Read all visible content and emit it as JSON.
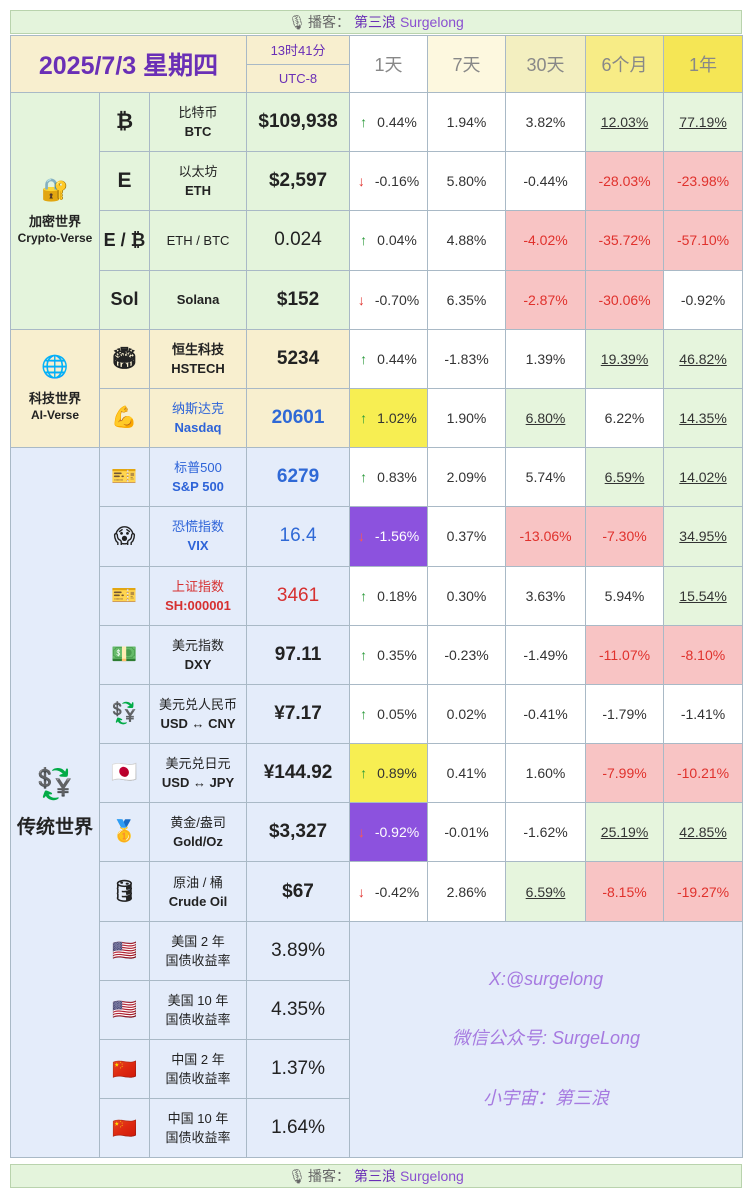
{
  "banner": {
    "label": "播客：",
    "name_cn": "第三浪",
    "name_en": "Surgelong",
    "icon": "microphone-icon"
  },
  "header": {
    "date": "2025/7/3 星期四",
    "time": "13时41分",
    "tz": "UTC-8",
    "periods": [
      "1天",
      "7天",
      "30天",
      "6个月",
      "1年"
    ]
  },
  "groups": {
    "crypto": {
      "icon": "🔐",
      "name_cn": "加密世界",
      "name_en": "Crypto-Verse"
    },
    "tech": {
      "icon": "🌐",
      "name_cn": "科技世界",
      "name_en": "AI-Verse"
    },
    "trad": {
      "icon": "💱",
      "name_cn": "传统世界"
    }
  },
  "assets": [
    {
      "icon": "₿",
      "cn": "比特币",
      "en": "BTC",
      "price": "$109,938",
      "changes": [
        "0.44%",
        "1.94%",
        "3.82%",
        "12.03%",
        "77.19%"
      ],
      "arrow": "↑"
    },
    {
      "icon": "Ε",
      "cn": "以太坊",
      "en": "ETH",
      "price": "$2,597",
      "changes": [
        "-0.16%",
        "5.80%",
        "-0.44%",
        "-28.03%",
        "-23.98%"
      ],
      "arrow": "↓"
    },
    {
      "icon": "E / ₿",
      "cn": "",
      "en": "ETH / BTC",
      "price": "0.024",
      "changes": [
        "0.04%",
        "4.88%",
        "-4.02%",
        "-35.72%",
        "-57.10%"
      ],
      "arrow": "↑"
    },
    {
      "icon": "Sol",
      "cn": "",
      "en": "Solana",
      "price": "$152",
      "changes": [
        "-0.70%",
        "6.35%",
        "-2.87%",
        "-30.06%",
        "-0.92%"
      ],
      "arrow": "↓"
    },
    {
      "icon": "🏟",
      "cn": "恒生科技",
      "en": "HSTECH",
      "price": "5234",
      "changes": [
        "0.44%",
        "-1.83%",
        "1.39%",
        "19.39%",
        "46.82%"
      ],
      "arrow": "↑"
    },
    {
      "icon": "💪",
      "cn": "纳斯达克",
      "en": "Nasdaq",
      "price": "20601",
      "changes": [
        "1.02%",
        "1.90%",
        "6.80%",
        "6.22%",
        "14.35%"
      ],
      "arrow": "↑"
    },
    {
      "icon": "🎫",
      "cn": "标普500",
      "en": "S&P 500",
      "price": "6279",
      "changes": [
        "0.83%",
        "2.09%",
        "5.74%",
        "6.59%",
        "14.02%"
      ],
      "arrow": "↑"
    },
    {
      "icon": "😱",
      "cn": "恐慌指数",
      "en": "VIX",
      "price": "16.4",
      "changes": [
        "-1.56%",
        "0.37%",
        "-13.06%",
        "-7.30%",
        "34.95%"
      ],
      "arrow": "↓"
    },
    {
      "icon": "🎫",
      "cn": "上证指数",
      "en": "SH:000001",
      "price": "3461",
      "changes": [
        "0.18%",
        "0.30%",
        "3.63%",
        "5.94%",
        "15.54%"
      ],
      "arrow": "↑"
    },
    {
      "icon": "💵",
      "cn": "美元指数",
      "en": "DXY",
      "price": "97.11",
      "changes": [
        "0.35%",
        "-0.23%",
        "-1.49%",
        "-11.07%",
        "-8.10%"
      ],
      "arrow": "↑"
    },
    {
      "icon": "💱",
      "cn": "美元兑人民币",
      "en": "USD ↔ CNY",
      "price": "¥7.17",
      "changes": [
        "0.05%",
        "0.02%",
        "-0.41%",
        "-1.79%",
        "-1.41%"
      ],
      "arrow": "↑"
    },
    {
      "icon": "🇯🇵",
      "cn": "美元兑日元",
      "en": "USD ↔ JPY",
      "price": "¥144.92",
      "changes": [
        "0.89%",
        "0.41%",
        "1.60%",
        "-7.99%",
        "-10.21%"
      ],
      "arrow": "↑"
    },
    {
      "icon": "🥇",
      "cn": "黄金/盎司",
      "en": "Gold/Oz",
      "price": "$3,327",
      "changes": [
        "-0.92%",
        "-0.01%",
        "-1.62%",
        "25.19%",
        "42.85%"
      ],
      "arrow": "↓"
    },
    {
      "icon": "🛢",
      "cn": "原油 / 桶",
      "en": "Crude Oil",
      "price": "$67",
      "changes": [
        "-0.42%",
        "2.86%",
        "6.59%",
        "-8.15%",
        "-19.27%"
      ],
      "arrow": "↓"
    }
  ],
  "bonds": [
    {
      "icon": "🇺🇸",
      "l1": "美国 2 年",
      "l2": "国债收益率",
      "value": "3.89%"
    },
    {
      "icon": "🇺🇸",
      "l1": "美国 10 年",
      "l2": "国债收益率",
      "value": "4.35%"
    },
    {
      "icon": "🇨🇳",
      "l1": "中国 2 年",
      "l2": "国债收益率",
      "value": "1.37%"
    },
    {
      "icon": "🇨🇳",
      "l1": "中国 10 年",
      "l2": "国债收益率",
      "value": "1.64%"
    }
  ],
  "footer": {
    "x_handle": "X:@surgelong",
    "wechat": "微信公众号: SurgeLong",
    "universe": "小宇宙：第三浪"
  },
  "colors": {
    "accent": "#6a2fb6",
    "up": "#2a9a3a",
    "down": "#e0312c",
    "highlight": "#f7ee52",
    "violet": "#8c52de"
  }
}
